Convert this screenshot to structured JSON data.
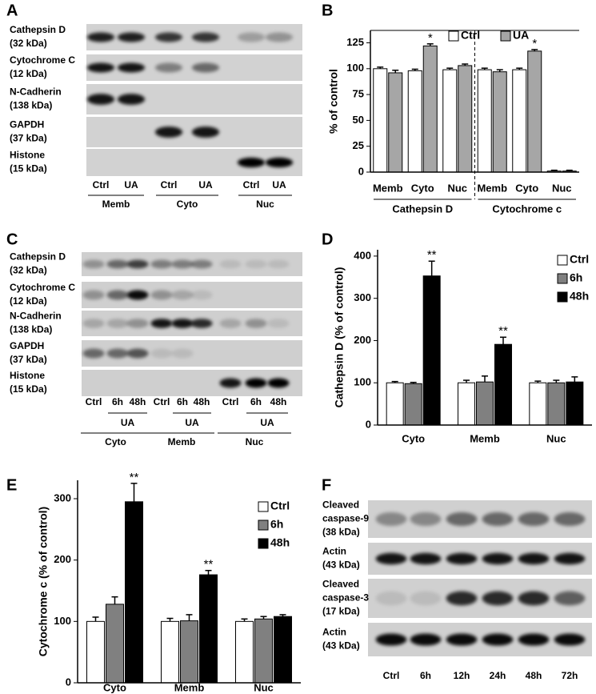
{
  "panel_labels": [
    "A",
    "B",
    "C",
    "D",
    "E",
    "F"
  ],
  "blots": [
    {
      "rows": [
        {
          "label": [
            "Cathepsin D",
            "(32 kDa)"
          ]
        },
        {
          "label": [
            "Cytochrome C",
            "(12 kDa)"
          ]
        },
        {
          "label": [
            "N-Cadherin",
            "(138 kDa)"
          ]
        },
        {
          "label": [
            "GAPDH",
            "(37 kDa)"
          ]
        },
        {
          "label": [
            "Histone",
            "(15 kDa)"
          ]
        }
      ],
      "lanes": [
        "Ctrl",
        "UA",
        "Ctrl",
        "UA",
        "Ctrl",
        "UA"
      ],
      "groups": [
        "Memb",
        "Cyto",
        "Nuc"
      ]
    },
    {
      "rows": [
        {
          "label": [
            "Cathepsin D",
            "(32 kDa)"
          ]
        },
        {
          "label": [
            "Cytochrome C",
            "(12 kDa)"
          ]
        },
        {
          "label": [
            "N-Cadherin",
            "(138 kDa)"
          ]
        },
        {
          "label": [
            "GAPDH",
            "(37 kDa)"
          ]
        },
        {
          "label": [
            "Histone",
            "(15 kDa)"
          ]
        }
      ],
      "lanes": [
        "Ctrl",
        "6h",
        "48h",
        "Ctrl",
        "6h",
        "48h",
        "Ctrl",
        "6h",
        "48h"
      ],
      "treatments": [
        "UA",
        "UA",
        "UA"
      ],
      "groups": [
        "Cyto",
        "Memb",
        "Nuc"
      ]
    },
    {
      "rows": [
        {
          "label": [
            "Cleaved",
            "caspase-9",
            "(38 kDa)"
          ]
        },
        {
          "label": [
            "Actin",
            "(43 kDa)"
          ]
        },
        {
          "label": [
            "Cleaved",
            "caspase-3",
            "(17 kDa)"
          ]
        },
        {
          "label": [
            "Actin",
            "(43 kDa)"
          ]
        }
      ],
      "lanes": [
        "Ctrl",
        "6h",
        "12h",
        "24h",
        "48h",
        "72h"
      ]
    }
  ],
  "chart_data": [
    {
      "type": "bar",
      "ylabel": "% of control",
      "categories": [
        "Memb",
        "Cyto",
        "Nuc",
        "Memb",
        "Cyto",
        "Nuc"
      ],
      "groups": [
        "Cathepsin D",
        "Cytochrome c"
      ],
      "series": [
        {
          "name": "Ctrl",
          "color": "#ffffff",
          "values": [
            100,
            98,
            99,
            99,
            99,
            1
          ],
          "errors": [
            1.5,
            1.5,
            1.5,
            1.5,
            1.5,
            0.8
          ]
        },
        {
          "name": "UA",
          "color": "#a6a6a6",
          "values": [
            96,
            122,
            103,
            97,
            117,
            1
          ],
          "errors": [
            2.5,
            2,
            1.5,
            2,
            1.5,
            0.8
          ],
          "significance": [
            null,
            "*",
            null,
            null,
            "*",
            null
          ]
        }
      ],
      "ylim": [
        0,
        137
      ],
      "yticks": [
        0,
        25,
        50,
        75,
        100,
        125
      ],
      "legend": "top"
    },
    {
      "type": "bar",
      "ylabel": "Cathepsin D (% of control)",
      "categories": [
        "Cyto",
        "Memb",
        "Nuc"
      ],
      "series": [
        {
          "name": "Ctrl",
          "color": "#ffffff",
          "values": [
            100,
            100,
            100
          ],
          "errors": [
            3,
            6,
            4
          ]
        },
        {
          "name": "6h",
          "color": "#808080",
          "values": [
            98,
            102,
            100
          ],
          "errors": [
            3,
            14,
            6
          ]
        },
        {
          "name": "48h",
          "color": "#000000",
          "values": [
            353,
            191,
            102
          ],
          "errors": [
            35,
            17,
            12
          ],
          "significance": [
            "**",
            "**",
            null
          ]
        }
      ],
      "ylim": [
        0,
        415
      ],
      "yticks": [
        0,
        100,
        200,
        300,
        400
      ],
      "legend": "upper right"
    },
    {
      "type": "bar",
      "ylabel": "Cytochrome c (% of control)",
      "categories": [
        "Cyto",
        "Memb",
        "Nuc"
      ],
      "series": [
        {
          "name": "Ctrl",
          "color": "#ffffff",
          "values": [
            100,
            100,
            100
          ],
          "errors": [
            7,
            5,
            4
          ]
        },
        {
          "name": "6h",
          "color": "#808080",
          "values": [
            128,
            101,
            104
          ],
          "errors": [
            12,
            10,
            4
          ]
        },
        {
          "name": "48h",
          "color": "#000000",
          "values": [
            295,
            176,
            108
          ],
          "errors": [
            30,
            7,
            3
          ],
          "significance": [
            "**",
            "**",
            null
          ]
        }
      ],
      "ylim": [
        0,
        330
      ],
      "yticks": [
        0,
        100,
        200,
        300
      ],
      "legend": "upper right"
    }
  ]
}
